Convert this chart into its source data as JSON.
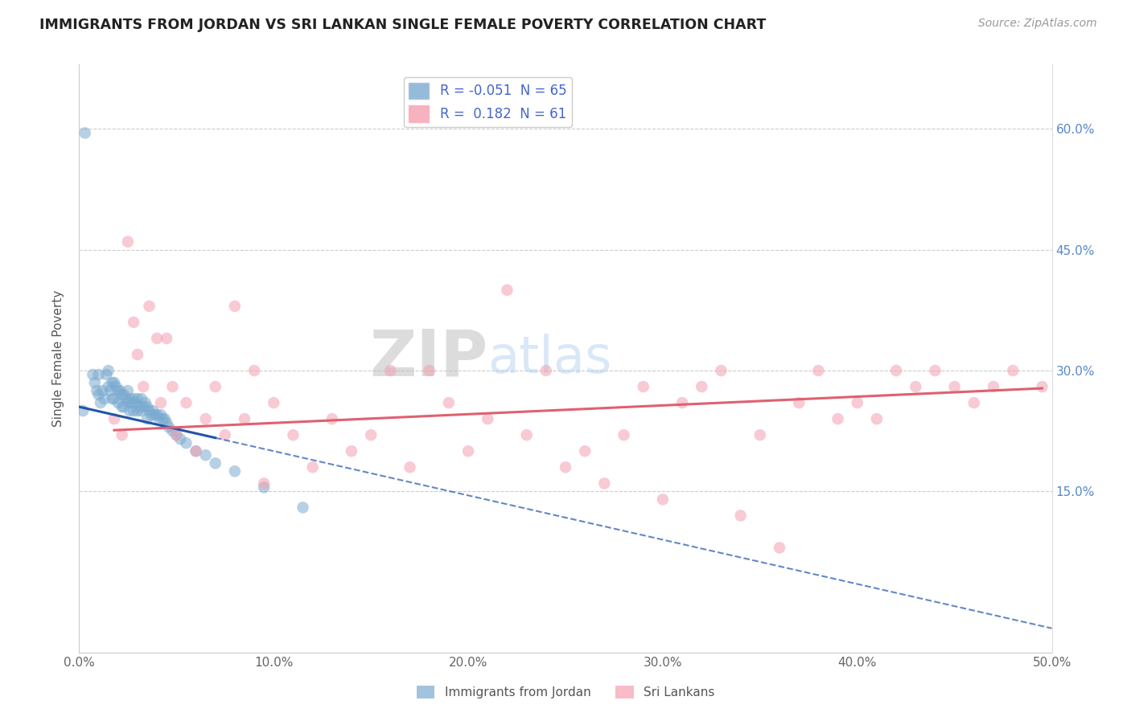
{
  "title": "IMMIGRANTS FROM JORDAN VS SRI LANKAN SINGLE FEMALE POVERTY CORRELATION CHART",
  "source": "Source: ZipAtlas.com",
  "ylabel": "Single Female Poverty",
  "legend_labels": [
    "Immigrants from Jordan",
    "Sri Lankans"
  ],
  "r_jordan": -0.051,
  "n_jordan": 65,
  "r_srilanka": 0.182,
  "n_srilanka": 61,
  "xlim": [
    0.0,
    0.5
  ],
  "ylim": [
    -0.05,
    0.68
  ],
  "xticks": [
    0.0,
    0.1,
    0.2,
    0.3,
    0.4,
    0.5
  ],
  "xtick_labels": [
    "0.0%",
    "10.0%",
    "20.0%",
    "30.0%",
    "40.0%",
    "50.0%"
  ],
  "yticks": [
    0.0,
    0.15,
    0.3,
    0.45,
    0.6
  ],
  "ytick_labels": [
    "",
    "15.0%",
    "30.0%",
    "45.0%",
    "60.0%"
  ],
  "color_jordan": "#7AAAD0",
  "color_srilanka": "#F4A0B0",
  "line_color_jordan": "#2255AA",
  "line_color_srilanka": "#E06070",
  "background_color": "#FFFFFF",
  "jordan_x": [
    0.003,
    0.007,
    0.008,
    0.009,
    0.01,
    0.01,
    0.011,
    0.012,
    0.013,
    0.014,
    0.015,
    0.015,
    0.016,
    0.017,
    0.017,
    0.018,
    0.018,
    0.019,
    0.02,
    0.02,
    0.021,
    0.022,
    0.022,
    0.023,
    0.023,
    0.024,
    0.025,
    0.025,
    0.026,
    0.026,
    0.027,
    0.028,
    0.028,
    0.029,
    0.03,
    0.03,
    0.031,
    0.032,
    0.032,
    0.033,
    0.034,
    0.035,
    0.035,
    0.036,
    0.037,
    0.038,
    0.039,
    0.04,
    0.041,
    0.042,
    0.043,
    0.044,
    0.045,
    0.046,
    0.048,
    0.05,
    0.052,
    0.055,
    0.06,
    0.065,
    0.07,
    0.08,
    0.095,
    0.115,
    0.002
  ],
  "jordan_y": [
    0.595,
    0.295,
    0.285,
    0.275,
    0.295,
    0.27,
    0.26,
    0.275,
    0.265,
    0.295,
    0.3,
    0.28,
    0.275,
    0.285,
    0.265,
    0.285,
    0.265,
    0.28,
    0.275,
    0.26,
    0.275,
    0.27,
    0.255,
    0.27,
    0.255,
    0.265,
    0.275,
    0.26,
    0.265,
    0.25,
    0.26,
    0.265,
    0.25,
    0.26,
    0.265,
    0.25,
    0.255,
    0.265,
    0.25,
    0.255,
    0.26,
    0.255,
    0.24,
    0.25,
    0.245,
    0.25,
    0.245,
    0.245,
    0.24,
    0.245,
    0.24,
    0.24,
    0.235,
    0.23,
    0.225,
    0.22,
    0.215,
    0.21,
    0.2,
    0.195,
    0.185,
    0.175,
    0.155,
    0.13,
    0.25
  ],
  "srilanka_x": [
    0.018,
    0.022,
    0.025,
    0.028,
    0.03,
    0.033,
    0.036,
    0.04,
    0.042,
    0.045,
    0.048,
    0.05,
    0.055,
    0.06,
    0.065,
    0.07,
    0.075,
    0.08,
    0.085,
    0.09,
    0.095,
    0.1,
    0.11,
    0.12,
    0.13,
    0.14,
    0.15,
    0.16,
    0.17,
    0.18,
    0.19,
    0.2,
    0.21,
    0.22,
    0.23,
    0.24,
    0.25,
    0.26,
    0.27,
    0.28,
    0.29,
    0.3,
    0.31,
    0.32,
    0.33,
    0.34,
    0.35,
    0.36,
    0.37,
    0.38,
    0.39,
    0.4,
    0.41,
    0.42,
    0.43,
    0.44,
    0.45,
    0.46,
    0.47,
    0.48,
    0.495
  ],
  "srilanka_y": [
    0.24,
    0.22,
    0.46,
    0.36,
    0.32,
    0.28,
    0.38,
    0.34,
    0.26,
    0.34,
    0.28,
    0.22,
    0.26,
    0.2,
    0.24,
    0.28,
    0.22,
    0.38,
    0.24,
    0.3,
    0.16,
    0.26,
    0.22,
    0.18,
    0.24,
    0.2,
    0.22,
    0.3,
    0.18,
    0.3,
    0.26,
    0.2,
    0.24,
    0.4,
    0.22,
    0.3,
    0.18,
    0.2,
    0.16,
    0.22,
    0.28,
    0.14,
    0.26,
    0.28,
    0.3,
    0.12,
    0.22,
    0.08,
    0.26,
    0.3,
    0.24,
    0.26,
    0.24,
    0.3,
    0.28,
    0.3,
    0.28,
    0.26,
    0.28,
    0.3,
    0.28
  ]
}
